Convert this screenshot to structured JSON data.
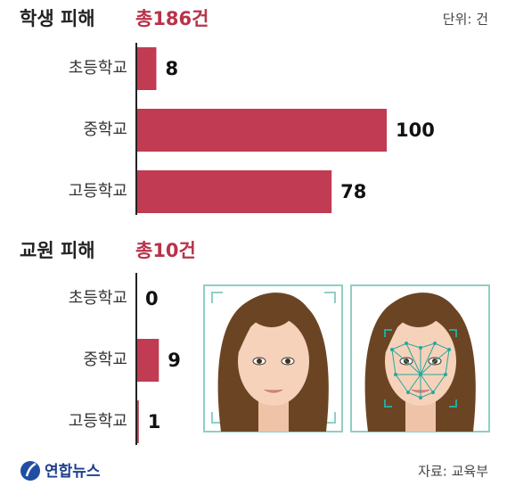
{
  "unit": "단위: 건",
  "source": "자료: 교육부",
  "logo": "연합뉴스",
  "chart_data": [
    {
      "type": "bar",
      "orientation": "horizontal",
      "title": "학생 피해",
      "subtitle": "총186건",
      "categories": [
        "초등학교",
        "중학교",
        "고등학교"
      ],
      "values": [
        8,
        100,
        78
      ],
      "color": "#c13b52"
    },
    {
      "type": "bar",
      "orientation": "horizontal",
      "title": "교원 피해",
      "subtitle": "총10건",
      "categories": [
        "초등학교",
        "중학교",
        "고등학교"
      ],
      "values": [
        0,
        9,
        1
      ],
      "color": "#c13b52"
    }
  ]
}
